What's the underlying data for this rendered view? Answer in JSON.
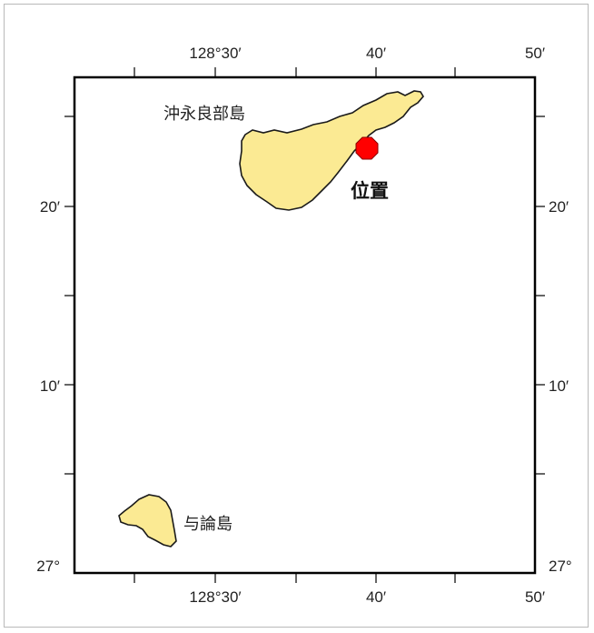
{
  "map": {
    "longitude_labels": [
      "128°30′",
      "40′",
      "50′"
    ],
    "latitude_labels": [
      "20′",
      "10′",
      "27°"
    ],
    "islands": [
      {
        "name": "沖永良部島",
        "fill": "#fbea93",
        "outline": "#1a1a1a"
      },
      {
        "name": "与論島",
        "fill": "#fbea93",
        "outline": "#1a1a1a"
      }
    ],
    "marker": {
      "label": "位置",
      "color": "#ff0000",
      "outline": "#8a0000"
    }
  }
}
